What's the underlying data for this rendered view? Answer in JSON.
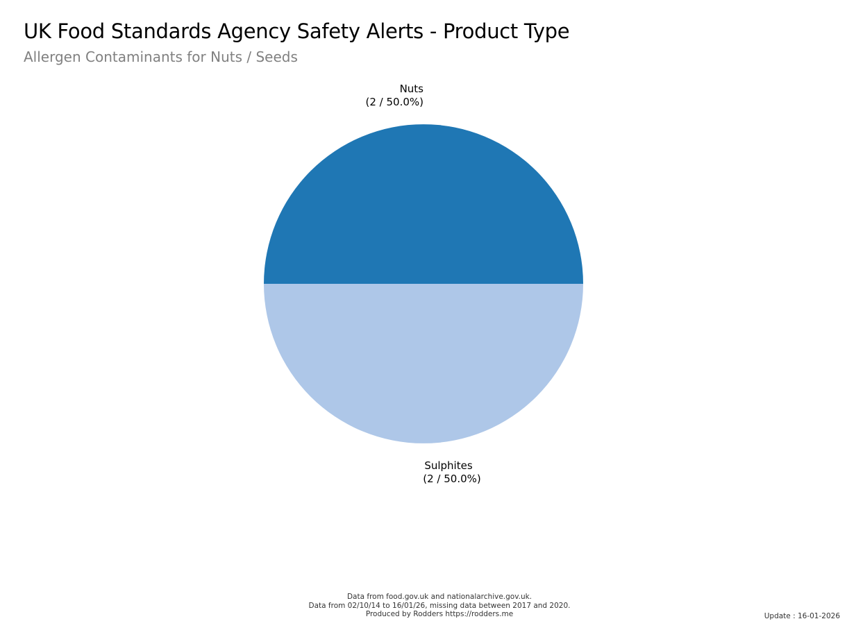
{
  "chart_data": {
    "type": "pie",
    "title": "UK Food Standards Agency Safety Alerts - Product Type",
    "subtitle": "Allergen Contaminants for Nuts / Seeds",
    "slices": [
      {
        "name": "Nuts",
        "value": 2,
        "percent": "50.0%",
        "label_line2": "(2 / 50.0%)",
        "color": "#1f77b4"
      },
      {
        "name": "Sulphites",
        "value": 2,
        "percent": "50.0%",
        "label_line2": "(2 / 50.0%)",
        "color": "#aec7e8"
      }
    ]
  },
  "footer": {
    "line1": "Data from food.gov.uk and nationalarchive.gov.uk.",
    "line2": "Data from 02/10/14 to 16/01/26, missing data between 2017 and 2020.",
    "line3": "Produced by Rodders https://rodders.me",
    "update": "Update : 16-01-2026"
  }
}
